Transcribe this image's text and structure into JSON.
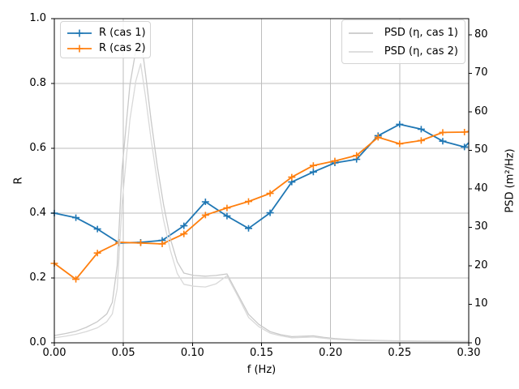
{
  "figure": {
    "background": "#ffffff"
  },
  "axes": {
    "xlabel": "f (Hz)",
    "ylabel_left": "R",
    "ylabel_right": "PSD (m²/Hz)",
    "x_ticks": [
      "0.00",
      "0.05",
      "0.10",
      "0.15",
      "0.20",
      "0.25",
      "0.30"
    ],
    "y_ticks_left": [
      "0.0",
      "0.2",
      "0.4",
      "0.6",
      "0.8",
      "1.0"
    ],
    "y_ticks_right": [
      "0",
      "10",
      "20",
      "30",
      "40",
      "50",
      "60",
      "70",
      "80"
    ],
    "grid_color": "#bdbdbd",
    "spine_color": "#000000"
  },
  "legend_left": {
    "items": [
      {
        "label": "R (cas 1)",
        "color": "#1f77b4",
        "key": "errorbar-line"
      },
      {
        "label": "R (cas 2)",
        "color": "#ff7f0e",
        "key": "errorbar-line"
      }
    ]
  },
  "legend_right": {
    "items": [
      {
        "label": "PSD (η, cas 1)",
        "color": "#c9c9c9",
        "key": "plain-line"
      },
      {
        "label": "PSD (η, cas 2)",
        "color": "#d9d9d9",
        "key": "plain-line"
      }
    ]
  },
  "chart_data": {
    "type": "line",
    "title": "",
    "xlabel": "f (Hz)",
    "ylabel": "R",
    "y2label": "PSD (m²/Hz)",
    "xlim": [
      0,
      0.3
    ],
    "ylim": [
      0,
      1.0
    ],
    "y2lim": [
      0,
      84.2
    ],
    "grid": true,
    "legend_positions": [
      "upper left",
      "upper right"
    ],
    "x_tick_vals": [
      0,
      0.05,
      0.1,
      0.15,
      0.2,
      0.25,
      0.3
    ],
    "y_tick_vals": [
      0,
      0.2,
      0.4,
      0.6,
      0.8,
      1.0
    ],
    "y2_tick_vals": [
      0,
      10,
      20,
      30,
      40,
      50,
      60,
      70,
      80
    ],
    "series": [
      {
        "name": "R (cas 1)",
        "axis": "left",
        "color": "#1f77b4",
        "marker": "plus",
        "x": [
          0.0,
          0.0156,
          0.0312,
          0.0469,
          0.0625,
          0.0781,
          0.0938,
          0.1094,
          0.125,
          0.1406,
          0.1562,
          0.1719,
          0.1875,
          0.2031,
          0.2188,
          0.2344,
          0.25,
          0.2656,
          0.2812,
          0.2969
        ],
        "y": [
          0.4,
          0.386,
          0.351,
          0.308,
          0.31,
          0.316,
          0.361,
          0.435,
          0.391,
          0.353,
          0.401,
          0.496,
          0.527,
          0.555,
          0.566,
          0.639,
          0.674,
          0.659,
          0.622,
          0.604
        ],
        "y_at_xmax": 0.617
      },
      {
        "name": "R (cas 2)",
        "axis": "left",
        "color": "#ff7f0e",
        "marker": "plus",
        "x": [
          0.0,
          0.0156,
          0.0312,
          0.0469,
          0.0625,
          0.0781,
          0.0938,
          0.1094,
          0.125,
          0.1406,
          0.1562,
          0.1719,
          0.1875,
          0.2031,
          0.2188,
          0.2344,
          0.25,
          0.2656,
          0.2812,
          0.2969
        ],
        "y": [
          0.245,
          0.196,
          0.277,
          0.31,
          0.308,
          0.305,
          0.336,
          0.394,
          0.416,
          0.436,
          0.461,
          0.511,
          0.547,
          0.561,
          0.578,
          0.634,
          0.614,
          0.624,
          0.649,
          0.65
        ],
        "y_at_xmax": 0.652
      },
      {
        "name": "PSD (η, cas 1)",
        "axis": "right",
        "color": "#c9c9c9",
        "marker": "none",
        "points": [
          [
            0,
            1.9
          ],
          [
            0.008,
            2.4
          ],
          [
            0.0156,
            3.0
          ],
          [
            0.023,
            4.0
          ],
          [
            0.0312,
            5.5
          ],
          [
            0.038,
            7.5
          ],
          [
            0.042,
            10.5
          ],
          [
            0.0455,
            20
          ],
          [
            0.049,
            45
          ],
          [
            0.0547,
            67
          ],
          [
            0.059,
            76
          ],
          [
            0.0625,
            79.5
          ],
          [
            0.066,
            70
          ],
          [
            0.07,
            58
          ],
          [
            0.0745,
            46
          ],
          [
            0.079,
            36
          ],
          [
            0.084,
            27
          ],
          [
            0.089,
            21
          ],
          [
            0.0938,
            18.1
          ],
          [
            0.101,
            17.5
          ],
          [
            0.1094,
            17.3
          ],
          [
            0.117,
            17.5
          ],
          [
            0.125,
            17.9
          ],
          [
            0.133,
            12.5
          ],
          [
            0.1406,
            7.4
          ],
          [
            0.148,
            4.8
          ],
          [
            0.1562,
            2.9
          ],
          [
            0.164,
            2.1
          ],
          [
            0.1719,
            1.6
          ],
          [
            0.18,
            1.7
          ],
          [
            0.1875,
            1.8
          ],
          [
            0.195,
            1.4
          ],
          [
            0.2031,
            1.1
          ],
          [
            0.211,
            0.9
          ],
          [
            0.2188,
            0.75
          ],
          [
            0.2344,
            0.6
          ],
          [
            0.25,
            0.5
          ],
          [
            0.2656,
            0.45
          ],
          [
            0.2812,
            0.4
          ],
          [
            0.2969,
            0.35
          ],
          [
            0.3,
            0.35
          ]
        ]
      },
      {
        "name": "PSD (η, cas 2)",
        "axis": "right",
        "color": "#d9d9d9",
        "marker": "none",
        "points": [
          [
            0,
            1.3
          ],
          [
            0.008,
            1.7
          ],
          [
            0.0156,
            2.2
          ],
          [
            0.023,
            2.9
          ],
          [
            0.0312,
            3.9
          ],
          [
            0.038,
            5.5
          ],
          [
            0.042,
            7.5
          ],
          [
            0.0455,
            14
          ],
          [
            0.049,
            36
          ],
          [
            0.0547,
            58
          ],
          [
            0.059,
            68
          ],
          [
            0.0625,
            72.5
          ],
          [
            0.066,
            64
          ],
          [
            0.07,
            53
          ],
          [
            0.0745,
            42
          ],
          [
            0.079,
            32
          ],
          [
            0.084,
            24
          ],
          [
            0.089,
            18
          ],
          [
            0.0938,
            15.2
          ],
          [
            0.101,
            14.7
          ],
          [
            0.1094,
            14.5
          ],
          [
            0.117,
            15.3
          ],
          [
            0.125,
            17.4
          ],
          [
            0.133,
            12
          ],
          [
            0.1406,
            6.6
          ],
          [
            0.148,
            4.2
          ],
          [
            0.1562,
            2.5
          ],
          [
            0.164,
            1.8
          ],
          [
            0.1719,
            1.3
          ],
          [
            0.18,
            1.4
          ],
          [
            0.1875,
            1.5
          ],
          [
            0.195,
            1.2
          ],
          [
            0.2031,
            0.9
          ],
          [
            0.211,
            0.75
          ],
          [
            0.2188,
            0.6
          ],
          [
            0.2344,
            0.5
          ],
          [
            0.25,
            0.4
          ],
          [
            0.2656,
            0.35
          ],
          [
            0.2812,
            0.3
          ],
          [
            0.2969,
            0.28
          ],
          [
            0.3,
            0.28
          ]
        ]
      }
    ]
  }
}
